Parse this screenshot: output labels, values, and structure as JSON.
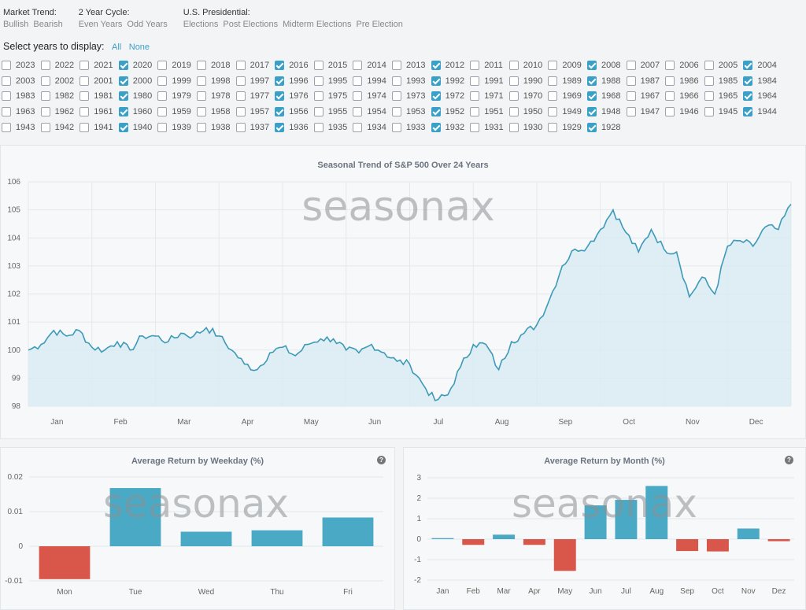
{
  "filters": {
    "market_trend": {
      "title": "Market Trend:",
      "options": [
        "Bullish",
        "Bearish"
      ]
    },
    "cycle": {
      "title": "2 Year Cycle:",
      "options": [
        "Even Years",
        "Odd Years"
      ]
    },
    "presidential": {
      "title": "U.S. Presidential:",
      "options": [
        "Elections",
        "Post Elections",
        "Midterm Elections",
        "Pre Election"
      ]
    }
  },
  "select_years": {
    "label": "Select years to display:",
    "all": "All",
    "none": "None"
  },
  "year_rows": [
    [
      [
        "2023",
        false
      ],
      [
        "2022",
        false
      ],
      [
        "2021",
        false
      ],
      [
        "2020",
        true
      ],
      [
        "2019",
        false
      ],
      [
        "2018",
        false
      ],
      [
        "2017",
        false
      ],
      [
        "2016",
        true
      ],
      [
        "2015",
        false
      ],
      [
        "2014",
        false
      ],
      [
        "2013",
        false
      ],
      [
        "2012",
        true
      ],
      [
        "2011",
        false
      ],
      [
        "2010",
        false
      ],
      [
        "2009",
        false
      ],
      [
        "2008",
        true
      ],
      [
        "2007",
        false
      ],
      [
        "2006",
        false
      ],
      [
        "2005",
        false
      ],
      [
        "2004",
        true
      ]
    ],
    [
      [
        "2003",
        false
      ],
      [
        "2002",
        false
      ],
      [
        "2001",
        false
      ],
      [
        "2000",
        true
      ],
      [
        "1999",
        false
      ],
      [
        "1998",
        false
      ],
      [
        "1997",
        false
      ],
      [
        "1996",
        true
      ],
      [
        "1995",
        false
      ],
      [
        "1994",
        false
      ],
      [
        "1993",
        false
      ],
      [
        "1992",
        true
      ],
      [
        "1991",
        false
      ],
      [
        "1990",
        false
      ],
      [
        "1989",
        false
      ],
      [
        "1988",
        true
      ],
      [
        "1987",
        false
      ],
      [
        "1986",
        false
      ],
      [
        "1985",
        false
      ],
      [
        "1984",
        true
      ]
    ],
    [
      [
        "1983",
        false
      ],
      [
        "1982",
        false
      ],
      [
        "1981",
        false
      ],
      [
        "1980",
        true
      ],
      [
        "1979",
        false
      ],
      [
        "1978",
        false
      ],
      [
        "1977",
        false
      ],
      [
        "1976",
        true
      ],
      [
        "1975",
        false
      ],
      [
        "1974",
        false
      ],
      [
        "1973",
        false
      ],
      [
        "1972",
        true
      ],
      [
        "1971",
        false
      ],
      [
        "1970",
        false
      ],
      [
        "1969",
        false
      ],
      [
        "1968",
        true
      ],
      [
        "1967",
        false
      ],
      [
        "1966",
        false
      ],
      [
        "1965",
        false
      ],
      [
        "1964",
        true
      ]
    ],
    [
      [
        "1963",
        false
      ],
      [
        "1962",
        false
      ],
      [
        "1961",
        false
      ],
      [
        "1960",
        true
      ],
      [
        "1959",
        false
      ],
      [
        "1958",
        false
      ],
      [
        "1957",
        false
      ],
      [
        "1956",
        true
      ],
      [
        "1955",
        false
      ],
      [
        "1954",
        false
      ],
      [
        "1953",
        false
      ],
      [
        "1952",
        true
      ],
      [
        "1951",
        false
      ],
      [
        "1950",
        false
      ],
      [
        "1949",
        false
      ],
      [
        "1948",
        true
      ],
      [
        "1947",
        false
      ],
      [
        "1946",
        false
      ],
      [
        "1945",
        false
      ],
      [
        "1944",
        true
      ]
    ],
    [
      [
        "1943",
        false
      ],
      [
        "1942",
        false
      ],
      [
        "1941",
        false
      ],
      [
        "1940",
        true
      ],
      [
        "1939",
        false
      ],
      [
        "1938",
        false
      ],
      [
        "1937",
        false
      ],
      [
        "1936",
        true
      ],
      [
        "1935",
        false
      ],
      [
        "1934",
        false
      ],
      [
        "1933",
        false
      ],
      [
        "1932",
        true
      ],
      [
        "1931",
        false
      ],
      [
        "1930",
        false
      ],
      [
        "1929",
        false
      ],
      [
        "1928",
        true
      ]
    ]
  ],
  "watermark": "seasonax",
  "help_icon": "?",
  "colors": {
    "accent": "#3aa0c8",
    "positive": "#4aa9c4",
    "negative": "#d9574a",
    "line": "#3d9ab8",
    "area": "#d7ebf2"
  },
  "chart_data": [
    {
      "type": "area",
      "title": "Seasonal Trend of S&P 500 Over 24 Years",
      "ylim": [
        98,
        106
      ],
      "yticks": [
        98,
        99,
        100,
        101,
        102,
        103,
        104,
        105,
        106
      ],
      "month_labels": [
        "Jan",
        "Feb",
        "Mar",
        "Apr",
        "May",
        "Jun",
        "Jul",
        "Aug",
        "Sep",
        "Oct",
        "Nov",
        "Dec"
      ],
      "x": [
        0,
        0.2,
        0.4,
        0.6,
        0.8,
        1,
        1.2,
        1.4,
        1.6,
        1.8,
        2,
        2.2,
        2.4,
        2.6,
        2.8,
        3,
        3.2,
        3.4,
        3.6,
        3.8,
        4,
        4.2,
        4.4,
        4.6,
        4.8,
        5,
        5.2,
        5.4,
        5.6,
        5.8,
        6,
        6.2,
        6.4,
        6.6,
        6.8,
        7,
        7.2,
        7.4,
        7.6,
        7.8,
        8,
        8.2,
        8.4,
        8.6,
        8.8,
        9,
        9.2,
        9.4,
        9.6,
        9.8,
        10,
        10.2,
        10.4,
        10.6,
        10.8,
        11,
        11.2,
        11.4,
        11.6,
        11.8,
        12
      ],
      "y": [
        100.0,
        100.2,
        100.7,
        100.5,
        100.7,
        100.1,
        100.0,
        100.3,
        100.0,
        100.5,
        100.5,
        100.3,
        100.6,
        100.5,
        100.8,
        100.5,
        100.0,
        99.5,
        99.3,
        99.9,
        100.1,
        99.8,
        100.2,
        100.4,
        100.4,
        100.0,
        99.9,
        100.2,
        99.9,
        99.6,
        99.5,
        98.8,
        98.2,
        98.4,
        99.4,
        100.2,
        100.2,
        99.3,
        100.3,
        100.6,
        100.9,
        101.8,
        103.0,
        103.6,
        103.7,
        104.3,
        105.0,
        104.2,
        103.5,
        104.3,
        103.6,
        103.5,
        101.9,
        102.6,
        102.0,
        103.7,
        103.9,
        103.7,
        104.4,
        104.3,
        105.2
      ],
      "xlabel": "",
      "ylabel": ""
    },
    {
      "type": "bar",
      "title": "Average Return by Weekday (%)",
      "categories": [
        "Mon",
        "Tue",
        "Wed",
        "Thu",
        "Fri"
      ],
      "values": [
        -0.0095,
        0.0168,
        0.0042,
        0.0046,
        0.0083
      ],
      "ylim": [
        -0.01,
        0.02
      ],
      "yticks": [
        -0.01,
        0,
        0.01,
        0.02
      ],
      "ytick_labels": [
        "-0.01",
        "0",
        "0.01",
        "0.02"
      ]
    },
    {
      "type": "bar",
      "title": "Average Return by Month (%)",
      "categories": [
        "Jan",
        "Feb",
        "Mar",
        "Apr",
        "May",
        "Jun",
        "Jul",
        "Aug",
        "Sep",
        "Oct",
        "Nov",
        "Dez"
      ],
      "values": [
        0.05,
        -0.28,
        0.22,
        -0.28,
        -1.55,
        1.65,
        1.92,
        2.6,
        -0.58,
        -0.6,
        0.52,
        -0.1
      ],
      "ylim": [
        -2,
        3
      ],
      "yticks": [
        -2,
        -1,
        0,
        1,
        2,
        3
      ],
      "ytick_labels": [
        "-2",
        "-1",
        "0",
        "1",
        "2",
        "3"
      ]
    }
  ]
}
